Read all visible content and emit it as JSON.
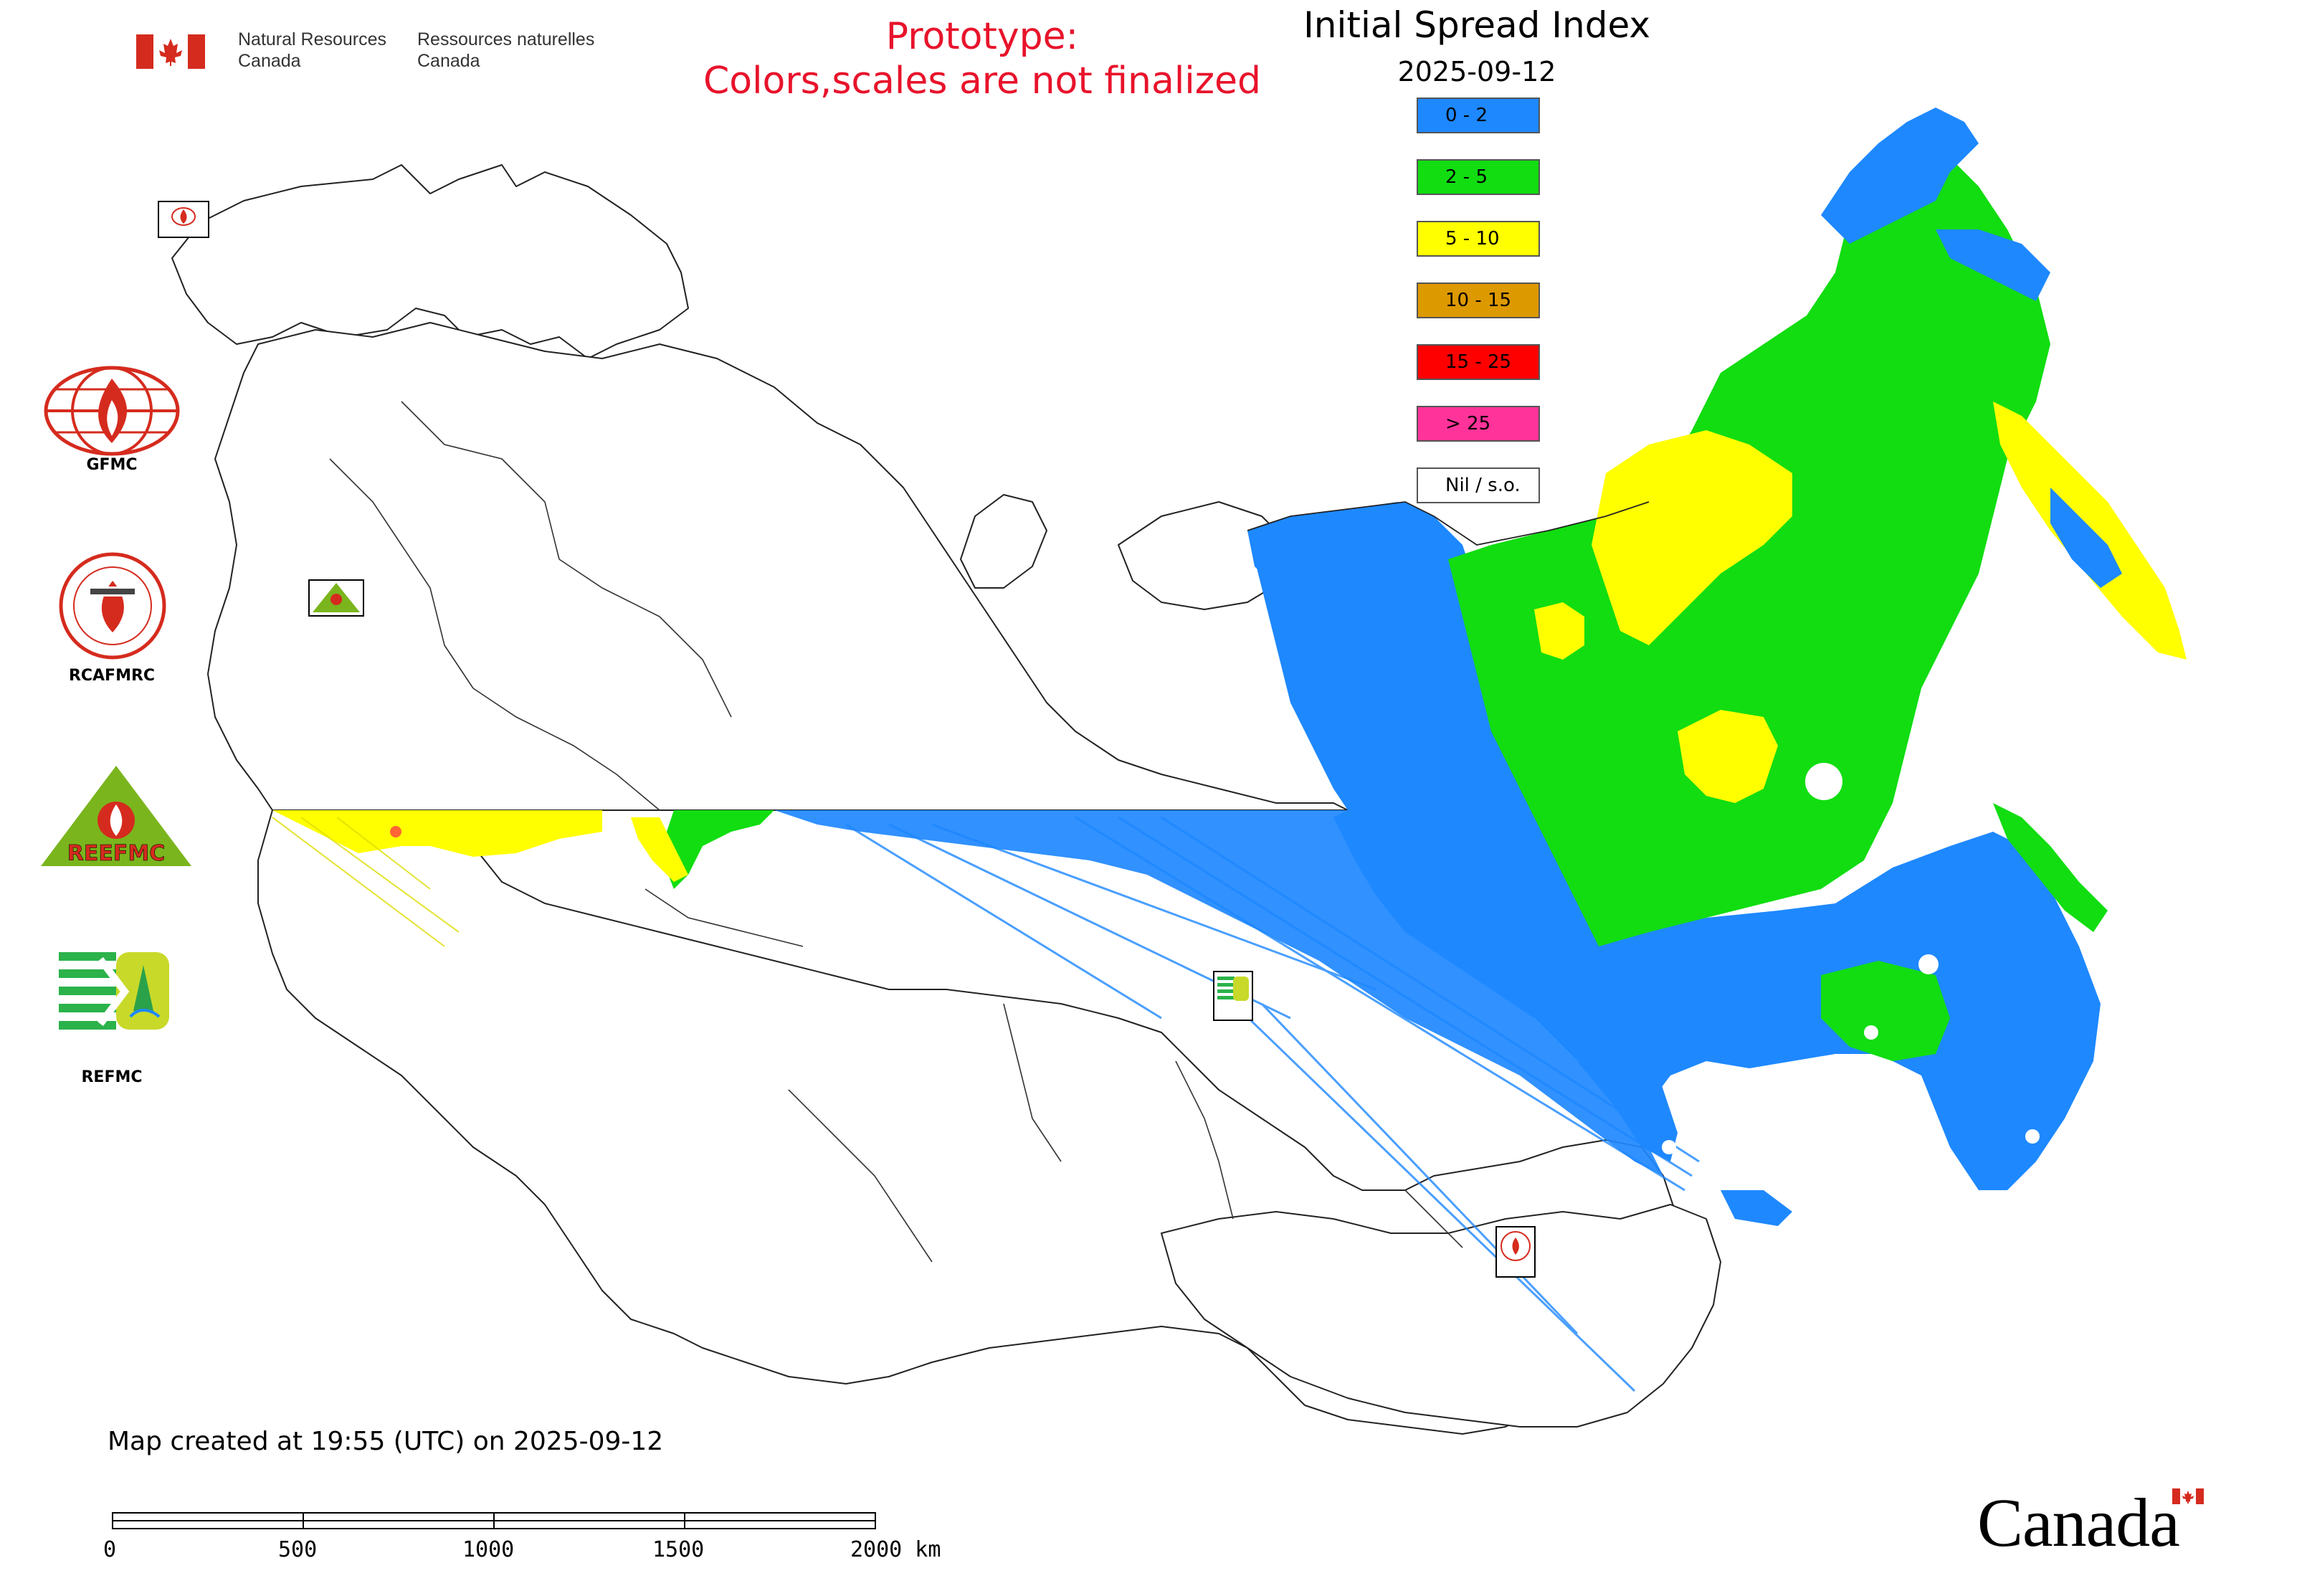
{
  "header": {
    "nrcan_en_line1": "Natural Resources",
    "nrcan_en_line2": "Canada",
    "nrcan_fr_line1": "Ressources naturelles",
    "nrcan_fr_line2": "Canada",
    "prototype_line1": "Prototype:",
    "prototype_line2": "Colors,scales are not finalized"
  },
  "legend": {
    "title": "Initial Spread Index",
    "date": "2025-09-12",
    "items": [
      {
        "label": "0 - 2",
        "color": "#1e88ff"
      },
      {
        "label": "2 - 5",
        "color": "#11dd11"
      },
      {
        "label": "5 - 10",
        "color": "#ffff00"
      },
      {
        "label": "10 - 15",
        "color": "#dd9900"
      },
      {
        "label": "15 - 25",
        "color": "#ff0000"
      },
      {
        "label": "> 25",
        "color": "#ff3399"
      },
      {
        "label": "Nil / s.o.",
        "color": "#ffffff"
      }
    ]
  },
  "side_logos": [
    {
      "name": "GFMC",
      "label": "GFMC"
    },
    {
      "name": "RCAFMRC",
      "label": "RCAFMRC"
    },
    {
      "name": "REEFMC",
      "label": ""
    },
    {
      "name": "REFMC",
      "label": "REFMC"
    }
  ],
  "map_markers": [
    {
      "label": "GFMC"
    },
    {
      "label": "REEFMC"
    },
    {
      "label": "REFMC"
    },
    {
      "label": "RCAFMRC"
    }
  ],
  "footer": {
    "created_text": "Map created at 19:55 (UTC) on 2025-09-12",
    "scale_labels": [
      "0",
      "500",
      "1000",
      "1500",
      "2000 km"
    ],
    "canada_wordmark": "Canada"
  },
  "colors": {
    "prototype_red": "#e8132b",
    "flag_red": "#d52b1e",
    "logo_green": "#7ab51d"
  }
}
